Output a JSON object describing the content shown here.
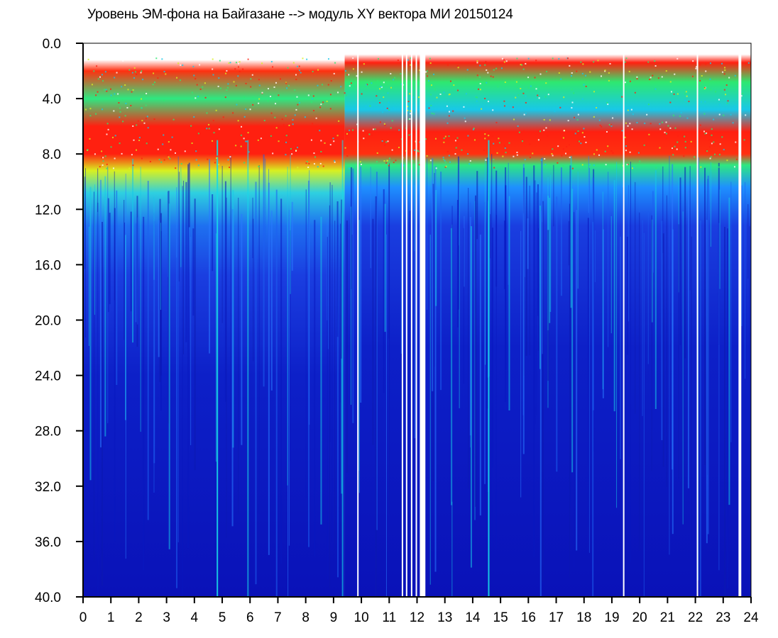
{
  "title": "Уровень ЭМ-фона на Байгазане   -->  модуль XY вектора МИ   20150124",
  "chart_data": {
    "type": "heatmap",
    "title": "Уровень ЭМ-фона на Байгазане   -->  модуль XY вектора МИ   20150124",
    "xlabel": "",
    "ylabel": "",
    "xlim": [
      0,
      24
    ],
    "ylim": [
      0,
      40
    ],
    "y_axis_inverted": true,
    "x_ticks": [
      "0",
      "1",
      "2",
      "3",
      "4",
      "5",
      "6",
      "7",
      "8",
      "9",
      "10",
      "11",
      "12",
      "13",
      "14",
      "15",
      "16",
      "17",
      "18",
      "19",
      "20",
      "21",
      "22",
      "23",
      "24"
    ],
    "y_ticks": [
      "0.0",
      "4.0",
      "8.0",
      "12.0",
      "16.0",
      "20.0",
      "24.0",
      "28.0",
      "32.0",
      "36.0",
      "40.0"
    ],
    "colorscale": [
      "#0a12b8",
      "#1a3ee0",
      "#1e90ff",
      "#15d8e0",
      "#2ee870",
      "#d8f020",
      "#ff2010",
      "#ffffff"
    ],
    "data_gaps_hours": [
      [
        9.85,
        9.9
      ],
      [
        11.45,
        11.5
      ],
      [
        11.6,
        11.65
      ],
      [
        11.78,
        11.83
      ],
      [
        11.95,
        12.0
      ],
      [
        12.1,
        12.3
      ],
      [
        19.4,
        19.45
      ],
      [
        22.05,
        22.1
      ],
      [
        23.55,
        23.65
      ]
    ],
    "description_bands": [
      {
        "hours": [
          0,
          9.4
        ],
        "red_top_y": [
          1.5,
          7.0
        ],
        "red_band_y": [
          7.0,
          8.5
        ]
      },
      {
        "hours": [
          9.4,
          24
        ],
        "red_top_y": [
          1.2,
          2.5
        ],
        "red_band_y": [
          6.5,
          8.2
        ]
      }
    ]
  }
}
